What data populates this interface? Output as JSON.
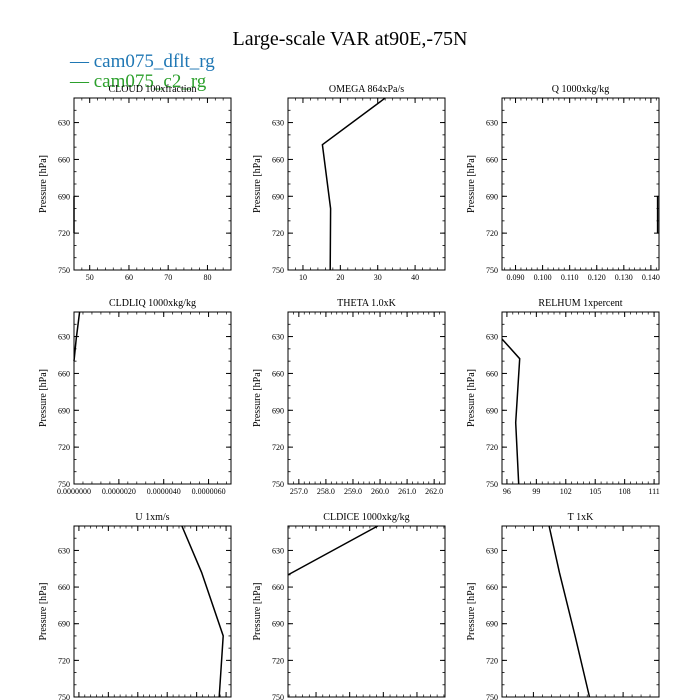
{
  "title": "Large-scale VAR at90E,-75N",
  "legend": [
    {
      "name": "cam075_dflt_rg",
      "color": "#1f77b4"
    },
    {
      "name": "cam075_c2_rg",
      "color": "#2ca02c"
    }
  ],
  "chart_data": [
    {
      "type": "line",
      "title": "CLOUD  100xfraction",
      "ylabel": "Pressure [hPa]",
      "xlim": [
        46,
        86
      ],
      "ylim": [
        750,
        610
      ],
      "xticks": [
        50,
        60,
        70,
        80
      ],
      "xtick_labels": [
        "50",
        "60",
        "70",
        "80"
      ],
      "yticks": [
        630,
        660,
        690,
        720,
        750
      ],
      "series": [
        {
          "x": [
            46,
            46
          ],
          "y": [
            690,
            720
          ]
        }
      ]
    },
    {
      "type": "line",
      "title": "OMEGA  864xPa/s",
      "ylabel": "Pressure [hPa]",
      "xlim": [
        6,
        48
      ],
      "ylim": [
        750,
        610
      ],
      "xticks": [
        10,
        20,
        30,
        40
      ],
      "xtick_labels": [
        "10",
        "20",
        "30",
        "40"
      ],
      "yticks": [
        630,
        660,
        690,
        720,
        750
      ],
      "series": [
        {
          "x": [
            32,
            15.2,
            17.4,
            17.3
          ],
          "y": [
            610,
            648,
            700,
            750
          ]
        }
      ]
    },
    {
      "type": "line",
      "title": "Q  1000xkg/kg",
      "ylabel": "Pressure [hPa]",
      "xlim": [
        0.085,
        0.143
      ],
      "ylim": [
        750,
        610
      ],
      "xticks": [
        0.09,
        0.1,
        0.11,
        0.12,
        0.13,
        0.14
      ],
      "xtick_labels": [
        "0.090",
        "0.100",
        "0.110",
        "0.120",
        "0.130",
        "0.140"
      ],
      "yticks": [
        630,
        660,
        690,
        720,
        750
      ],
      "series": [
        {
          "x": [
            0.1425,
            0.1425
          ],
          "y": [
            690,
            720
          ]
        }
      ]
    },
    {
      "type": "line",
      "title": "CLDLIQ  1000xkg/kg",
      "ylabel": "Pressure [hPa]",
      "xlim": [
        0,
        7e-06
      ],
      "ylim": [
        750,
        610
      ],
      "xticks": [
        0,
        2e-06,
        4e-06,
        6e-06
      ],
      "xtick_labels": [
        "0.0000000",
        "0.0000020",
        "0.0000040",
        "0.0000060"
      ],
      "yticks": [
        630,
        660,
        690,
        720,
        750
      ],
      "series": [
        {
          "x": [
            2.5e-07,
            1e-07,
            0.0
          ],
          "y": [
            610,
            632,
            650
          ]
        }
      ]
    },
    {
      "type": "line",
      "title": "THETA  1.0xK",
      "ylabel": "Pressure [hPa]",
      "xlim": [
        256.6,
        262.4
      ],
      "ylim": [
        750,
        610
      ],
      "xticks": [
        257,
        258,
        259,
        260,
        261,
        262
      ],
      "xtick_labels": [
        "257.0",
        "258.0",
        "259.0",
        "260.0",
        "261.0",
        "262.0"
      ],
      "yticks": [
        630,
        660,
        690,
        720,
        750
      ],
      "series": []
    },
    {
      "type": "line",
      "title": "RELHUM  1xpercent",
      "ylabel": "Pressure [hPa]",
      "xlim": [
        95.5,
        111.5
      ],
      "ylim": [
        750,
        610
      ],
      "xticks": [
        96,
        99,
        102,
        105,
        108,
        111
      ],
      "xtick_labels": [
        "96",
        "99",
        "102",
        "105",
        "108",
        "111"
      ],
      "yticks": [
        630,
        660,
        690,
        720,
        750
      ],
      "series": [
        {
          "x": [
            95.5,
            97.3,
            96.9,
            97.2
          ],
          "y": [
            632,
            648,
            700,
            750
          ]
        }
      ]
    },
    {
      "type": "line",
      "title": "U  1xm/s",
      "ylabel": "Pressure [hPa]",
      "xlim": [
        -5.45,
        -3.85
      ],
      "ylim": [
        750,
        610
      ],
      "xticks": [
        -5.4,
        -5.1,
        -4.8,
        -4.5,
        -4.2,
        -3.9
      ],
      "xtick_labels": [
        "-5.40",
        "-5.10",
        "-4.80",
        "-4.50",
        "-4.20",
        "-3.90"
      ],
      "yticks": [
        630,
        660,
        690,
        720,
        750
      ],
      "series": [
        {
          "x": [
            -4.35,
            -4.15,
            -3.93,
            -3.97
          ],
          "y": [
            610,
            648,
            700,
            750
          ]
        }
      ]
    },
    {
      "type": "line",
      "title": "CLDICE  1000xkg/kg",
      "ylabel": "Pressure [hPa]",
      "xlim": [
        0.00155,
        0.00295
      ],
      "ylim": [
        750,
        610
      ],
      "xticks": [
        0.0018,
        0.0021,
        0.0024,
        0.0027
      ],
      "xtick_labels": [
        "0.0018",
        "0.0021",
        "0.0024",
        "0.0027"
      ],
      "yticks": [
        630,
        660,
        690,
        720,
        750
      ],
      "series": [
        {
          "x": [
            0.00235,
            0.00155
          ],
          "y": [
            610,
            650
          ]
        }
      ]
    },
    {
      "type": "line",
      "title": "T  1xK",
      "ylabel": "Pressure [hPa]",
      "xlim": [
        223,
        258
      ],
      "ylim": [
        750,
        610
      ],
      "xticks": [
        230,
        240,
        250
      ],
      "xtick_labels": [
        "230",
        "240",
        "250"
      ],
      "yticks": [
        630,
        660,
        690,
        720,
        750
      ],
      "series": [
        {
          "x": [
            233.5,
            235.8,
            239.3,
            242.5
          ],
          "y": [
            610,
            648,
            700,
            750
          ]
        }
      ]
    }
  ]
}
